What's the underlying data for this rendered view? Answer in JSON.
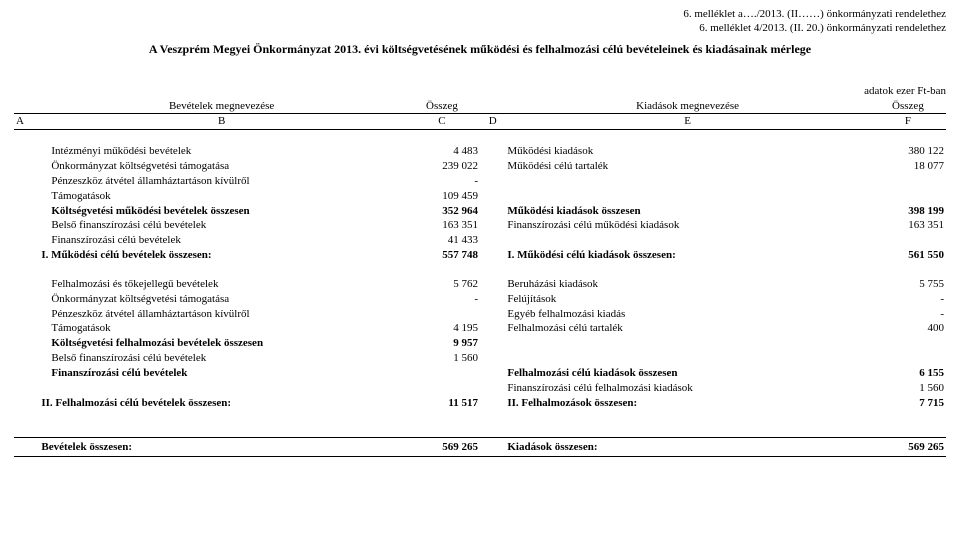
{
  "header": {
    "line1": "6. melléklet  a…./2013. (II……) önkormányzati rendelethez",
    "line2": "6. melléklet 4/2013. (II. 20.) önkormányzati rendelethez",
    "title": "A Veszprém Megyei Önkormányzat 2013. évi költségvetésének működési és felhalmozási célú bevételeinek és kiadásainak mérlege",
    "unit": "adatok ezer Ft-ban"
  },
  "colheads": {
    "left_title": "Bevételek megnevezése",
    "left_amount": "Összeg",
    "right_title": "Kiadások megnevezése",
    "right_amount": "Összeg"
  },
  "letters": {
    "a": "A",
    "b": "B",
    "c": "C",
    "d": "D",
    "e": "E",
    "f": "F"
  },
  "rows": [
    {
      "l": "Intézményi működési bevételek",
      "lv": "4 483",
      "r": "Működési kiadások",
      "rv": "380 122",
      "bold": false,
      "ind": true
    },
    {
      "l": "Önkormányzat költségvetési támogatása",
      "lv": "239 022",
      "r": "Működési célú tartalék",
      "rv": "18 077",
      "bold": false,
      "ind": true
    },
    {
      "l": "Pénzeszköz átvétel államháztartáson kívülről",
      "lv": "-",
      "r": "",
      "rv": "",
      "bold": false,
      "ind": true
    },
    {
      "l": "Támogatások",
      "lv": "109 459",
      "r": "",
      "rv": "",
      "bold": false,
      "ind": true
    },
    {
      "l": "Költségvetési működési bevételek összesen",
      "lv": "352 964",
      "r": "Működési kiadások összesen",
      "rv": "398 199",
      "bold": true,
      "ind": true
    },
    {
      "l": "Belső finanszírozási célú bevételek",
      "lv": "163 351",
      "r": "Finanszírozási célú működési kiadások",
      "rv": "163 351",
      "bold": false,
      "ind": true
    },
    {
      "l": "Finanszírozási célú bevételek",
      "lv": "41 433",
      "r": "",
      "rv": "",
      "bold": false,
      "ind": true
    },
    {
      "l": "I.  Működési célú bevételek összesen:",
      "lv": "557 748",
      "r": "I. Működési célú kiadások összesen:",
      "rv": "561 550",
      "bold": true,
      "ind": false
    }
  ],
  "rows2": [
    {
      "l": "Felhalmozási és tőkejellegű bevételek",
      "lv": "5 762",
      "r": "Beruházási kiadások",
      "rv": "5 755",
      "bold": false,
      "ind": true
    },
    {
      "l": "Önkormányzat költségvetési támogatása",
      "lv": "-",
      "r": "Felújítások",
      "rv": "-",
      "bold": false,
      "ind": true
    },
    {
      "l": "Pénzeszköz átvétel államháztartáson kívülről",
      "lv": "",
      "r": "Egyéb felhalmozási kiadás",
      "rv": "-",
      "bold": false,
      "ind": true
    },
    {
      "l": "Támogatások",
      "lv": "4 195",
      "r": "Felhalmozási célú tartalék",
      "rv": "400",
      "bold": false,
      "ind": true
    },
    {
      "l": "Költségvetési felhalmozási bevételek összesen",
      "lv": "9 957",
      "r": "",
      "rv": "",
      "bold": true,
      "ind": true
    },
    {
      "l": "Belső finanszírozási célú bevételek",
      "lv": "1 560",
      "r": "",
      "rv": "",
      "bold": false,
      "ind": true
    },
    {
      "l": "Finanszírozási célú bevételek",
      "lv": "",
      "r": "Felhalmozási célú kiadások összesen",
      "rv": "6 155",
      "bold": true,
      "ind": true,
      "rbold": true
    },
    {
      "l": "",
      "lv": "",
      "r": "Finanszírozási célú felhalmozási kiadások",
      "rv": "1 560",
      "bold": false,
      "ind": true
    },
    {
      "l": "II.  Felhalmozási célú bevételek összesen:",
      "lv": "11 517",
      "r": "II. Felhalmozások összesen:",
      "rv": "7 715",
      "bold": true,
      "ind": false
    }
  ],
  "totals": {
    "left_label": "Bevételek összesen:",
    "left_value": "569 265",
    "right_label": "Kiadások összesen:",
    "right_value": "569 265"
  }
}
